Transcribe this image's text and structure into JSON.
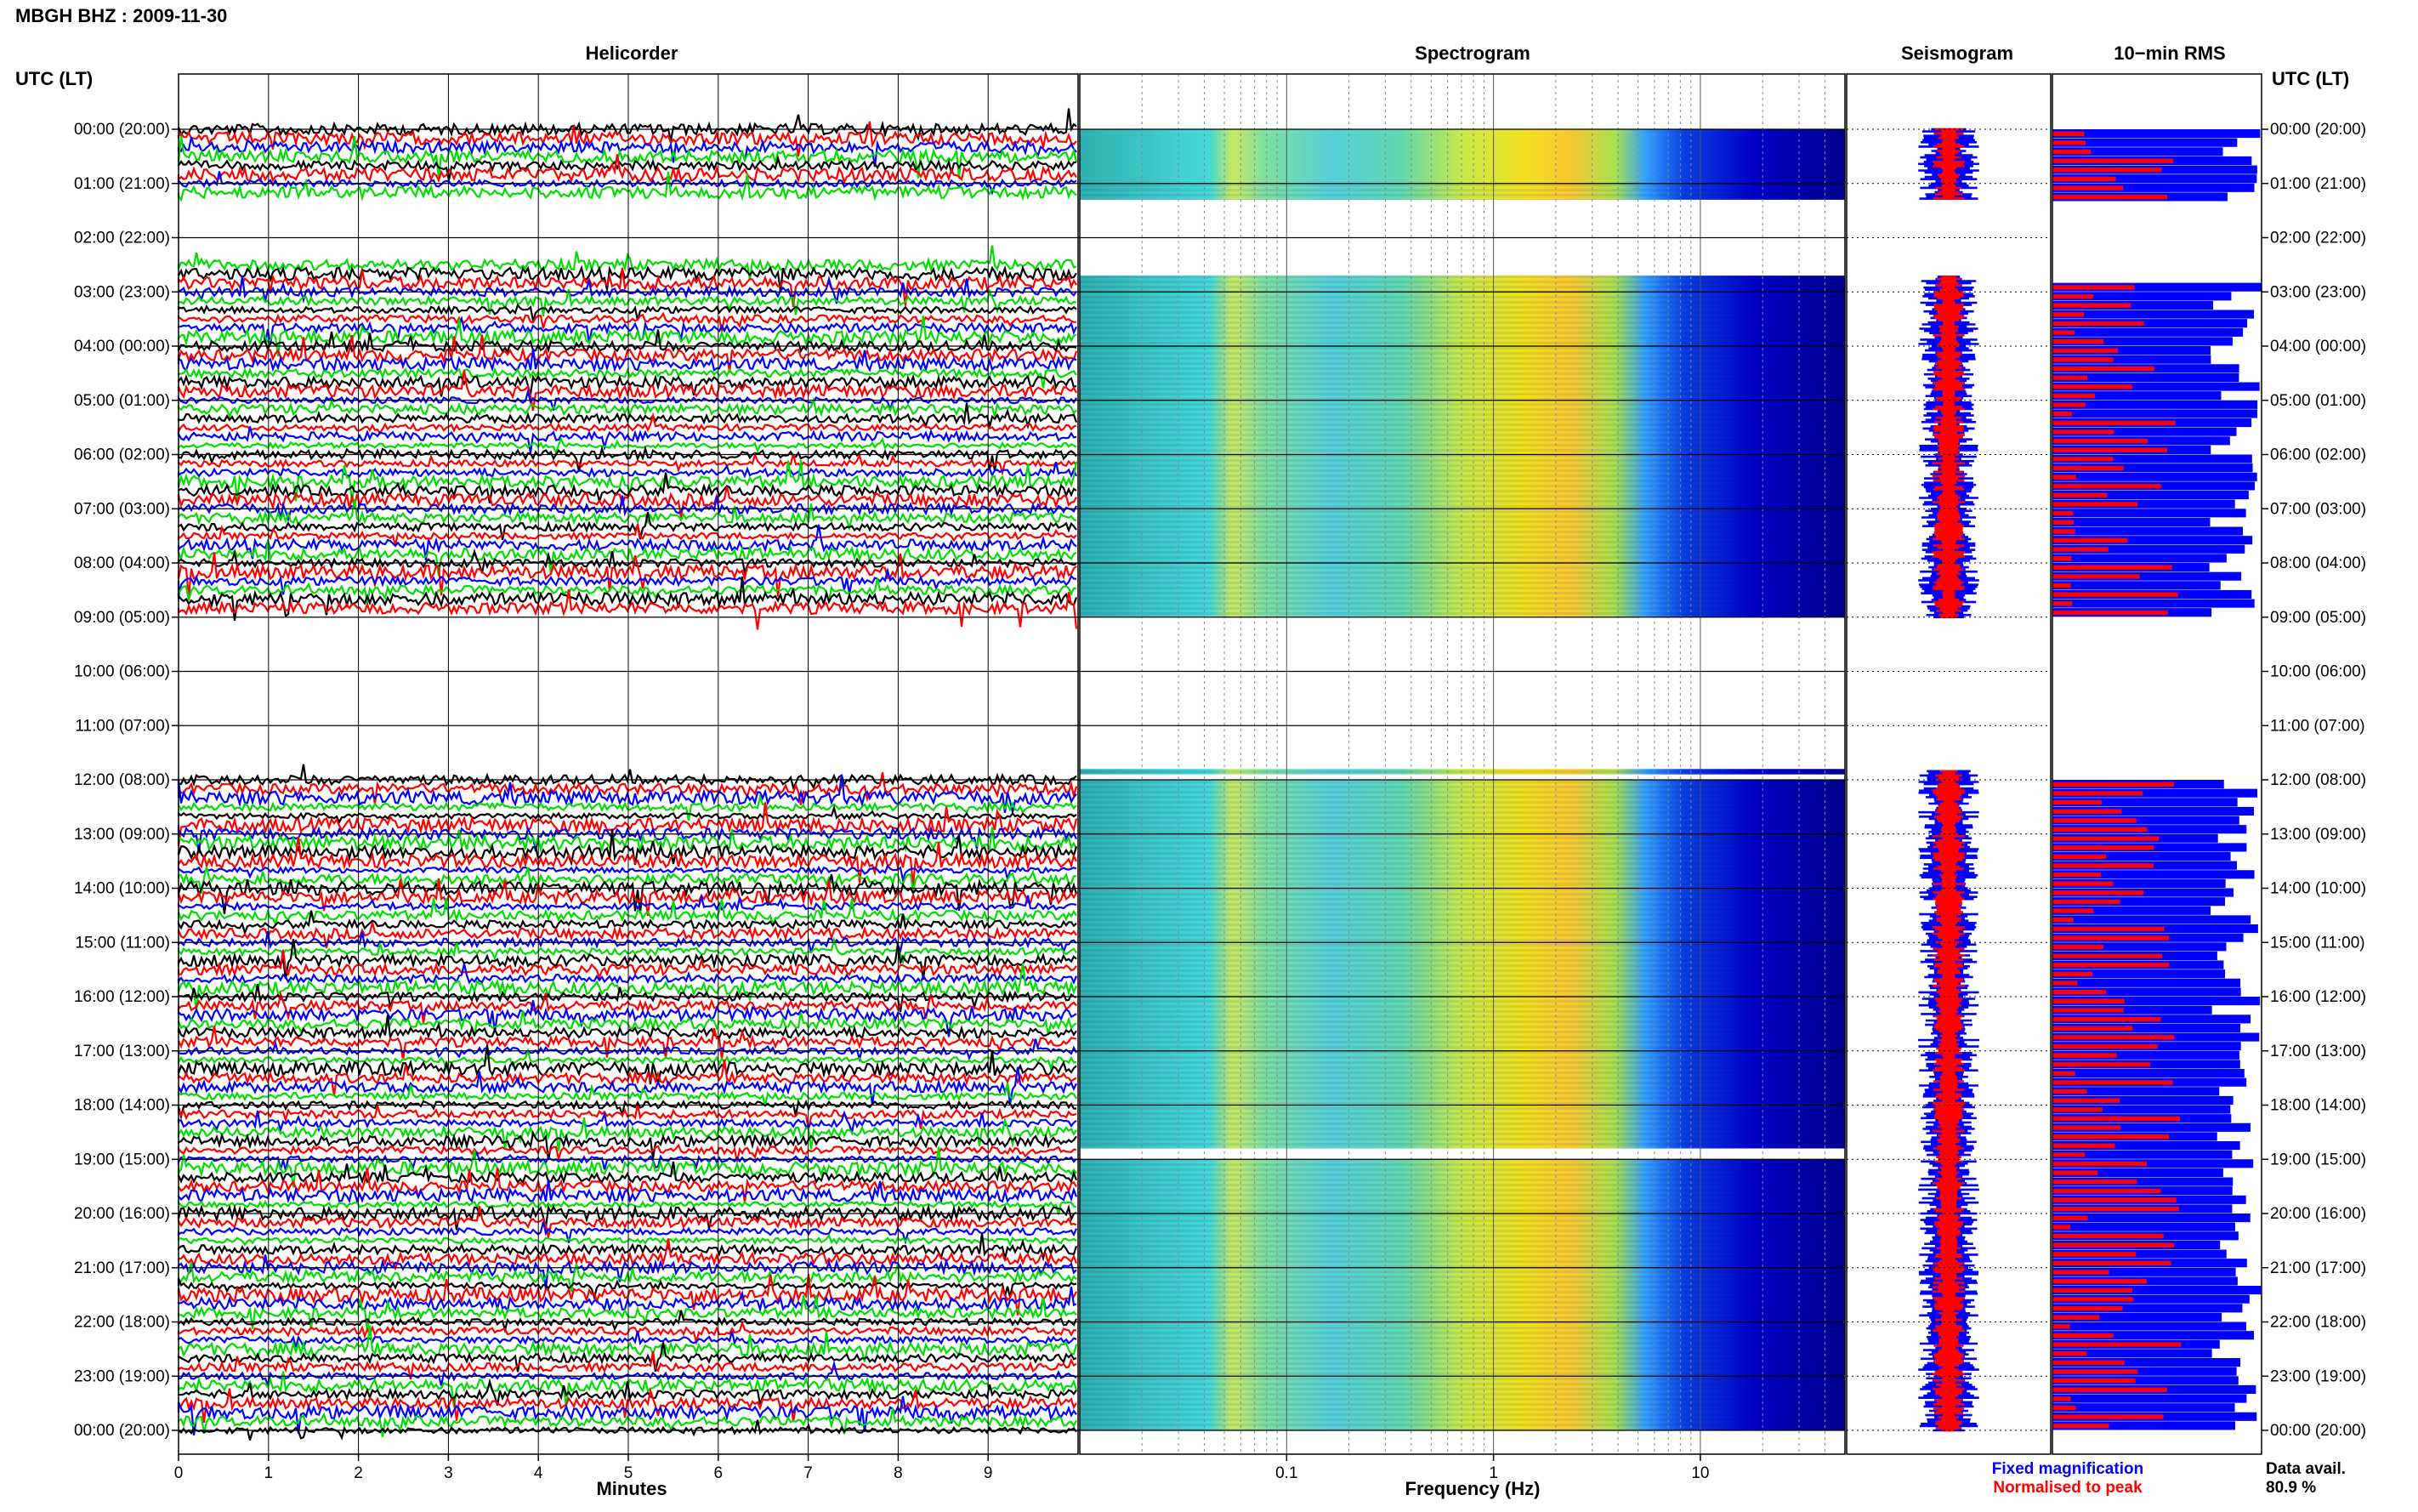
{
  "figure": {
    "title": "MBGH BHZ : 2009-11-30",
    "left_axis_header": "UTC (LT)",
    "right_axis_header": "UTC (LT)"
  },
  "panels": {
    "helicorder": "Helicorder",
    "spectrogram": "Spectrogram",
    "seismogram": "Seismogram",
    "rms": "10−min RMS"
  },
  "legend": {
    "fixed": "Fixed magnification",
    "normalised": "Normalised to peak",
    "fixed_color": "#0000ff",
    "normalised_color": "#ff0000"
  },
  "data_availability": {
    "label": "Data avail.",
    "value": "80.9 %"
  },
  "colors": {
    "trace_cycle": [
      "#000000",
      "#ff0000",
      "#0000ff",
      "#00dd00"
    ],
    "spectrogram_scale": [
      "#00008f",
      "#0000ff",
      "#0080ff",
      "#00ffff",
      "#80ff80",
      "#ffff00",
      "#ff8000",
      "#ff0000"
    ]
  },
  "chart_data": [
    {
      "type": "line",
      "name": "helicorder",
      "xlabel": "Minutes",
      "xlim": [
        0,
        10
      ],
      "xticks": [
        "0",
        "1",
        "2",
        "3",
        "4",
        "5",
        "6",
        "7",
        "8",
        "9"
      ],
      "ylabel": "UTC (LT)",
      "yticks": [
        "00:00 (20:00)",
        "01:00 (21:00)",
        "02:00 (22:00)",
        "03:00 (23:00)",
        "04:00 (00:00)",
        "05:00 (01:00)",
        "06:00 (02:00)",
        "07:00 (03:00)",
        "08:00 (04:00)",
        "09:00 (05:00)",
        "10:00 (06:00)",
        "11:00 (07:00)",
        "12:00 (08:00)",
        "13:00 (09:00)",
        "14:00 (10:00)",
        "15:00 (11:00)",
        "16:00 (12:00)",
        "17:00 (13:00)",
        "18:00 (14:00)",
        "19:00 (15:00)",
        "20:00 (16:00)",
        "21:00 (17:00)",
        "22:00 (18:00)",
        "23:00 (19:00)",
        "00:00 (20:00)"
      ],
      "ylim_hours": [
        0,
        24
      ],
      "data_gaps_hours": [
        [
          1.2,
          1.6
        ],
        [
          1.6,
          2.5
        ],
        [
          9.0,
          12.0
        ]
      ],
      "notes": "10-minute traces stacked; colour cycle black, red, blue, green"
    },
    {
      "type": "heatmap",
      "name": "spectrogram",
      "xlabel": "Frequency (Hz)",
      "x_scale": "log",
      "xlim": [
        0.01,
        50
      ],
      "xticks": [
        "0.1",
        "1",
        "10"
      ],
      "ylim_hours": [
        0,
        24
      ],
      "data_gaps_hours": [
        [
          1.3,
          2.7
        ],
        [
          9.0,
          11.8
        ],
        [
          18.8,
          19.0
        ]
      ],
      "energy_peak_hz": [
        2,
        4
      ]
    },
    {
      "type": "area",
      "name": "seismogram",
      "series": [
        {
          "name": "Fixed magnification",
          "color": "#0000ff"
        },
        {
          "name": "Normalised to peak",
          "color": "#ff0000"
        }
      ]
    },
    {
      "type": "bar",
      "name": "10-min RMS",
      "series": [
        {
          "name": "Fixed magnification",
          "color": "#0000ff"
        },
        {
          "name": "Normalised to peak",
          "color": "#ff0000"
        }
      ]
    }
  ]
}
